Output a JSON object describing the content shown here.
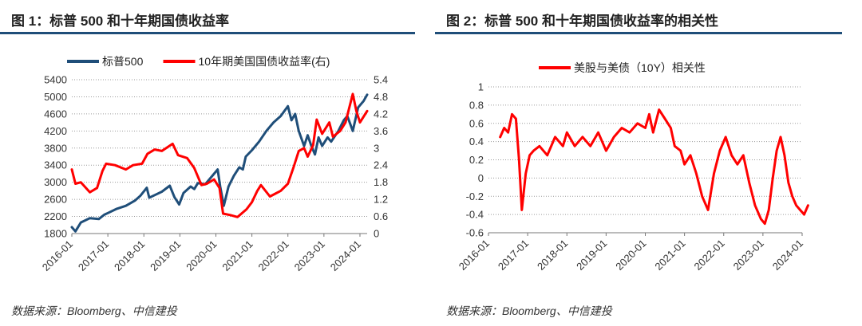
{
  "chart_data": [
    {
      "type": "line",
      "title": "图 1：标普 500 和十年期国债收益率",
      "source": "数据来源：Bloomberg、中信建投",
      "x_tick_labels": [
        "2016-01",
        "2017-01",
        "2018-01",
        "2019-01",
        "2020-01",
        "2021-01",
        "2022-01",
        "2023-01",
        "2024-01"
      ],
      "x_range": [
        2016.0,
        2024.2
      ],
      "y_left": {
        "ticks": [
          "5400",
          "5000",
          "4600",
          "4200",
          "3800",
          "3400",
          "3000",
          "2600",
          "2200",
          "1800"
        ],
        "range": [
          1800,
          5400
        ]
      },
      "y_right": {
        "ticks": [
          "5.4",
          "4.8",
          "4.2",
          "3.6",
          "3",
          "2.4",
          "1.8",
          "1.2",
          "0.6",
          "0"
        ],
        "range": [
          0,
          5.4
        ]
      },
      "grid": "horizontal dotted",
      "legend_position": "top",
      "series": [
        {
          "name": "标普500",
          "axis": "left",
          "color": "#1f4e79",
          "x": [
            2016.0,
            2016.1,
            2016.25,
            2016.5,
            2016.75,
            2016.9,
            2017.0,
            2017.25,
            2017.5,
            2017.75,
            2017.9,
            2018.08,
            2018.15,
            2018.3,
            2018.5,
            2018.72,
            2018.85,
            2018.98,
            2019.1,
            2019.3,
            2019.4,
            2019.5,
            2019.7,
            2019.9,
            2020.05,
            2020.12,
            2020.22,
            2020.35,
            2020.5,
            2020.65,
            2020.75,
            2020.83,
            2021.0,
            2021.2,
            2021.4,
            2021.6,
            2021.8,
            2022.0,
            2022.1,
            2022.2,
            2022.3,
            2022.45,
            2022.55,
            2022.65,
            2022.75,
            2022.85,
            2022.95,
            2023.1,
            2023.2,
            2023.4,
            2023.55,
            2023.65,
            2023.8,
            2023.95,
            2024.1,
            2024.2
          ],
          "values": [
            1950,
            1850,
            2060,
            2160,
            2140,
            2240,
            2280,
            2380,
            2450,
            2570,
            2680,
            2870,
            2640,
            2700,
            2780,
            2920,
            2650,
            2480,
            2750,
            2900,
            2840,
            2980,
            2950,
            3150,
            3300,
            2900,
            2450,
            2900,
            3150,
            3350,
            3300,
            3600,
            3750,
            3950,
            4200,
            4400,
            4550,
            4780,
            4450,
            4600,
            4200,
            3850,
            4100,
            3850,
            3650,
            4050,
            3850,
            4050,
            3950,
            4200,
            4450,
            4550,
            4200,
            4750,
            4900,
            5050
          ]
        },
        {
          "name": "10年期美国国债收益率(右)",
          "axis": "right",
          "color": "#ff0000",
          "x": [
            2016.0,
            2016.1,
            2016.25,
            2016.5,
            2016.7,
            2016.85,
            2016.95,
            2017.2,
            2017.5,
            2017.7,
            2017.95,
            2018.1,
            2018.3,
            2018.5,
            2018.8,
            2018.95,
            2019.2,
            2019.4,
            2019.6,
            2019.75,
            2019.95,
            2020.1,
            2020.2,
            2020.4,
            2020.6,
            2020.85,
            2021.0,
            2021.15,
            2021.25,
            2021.5,
            2021.65,
            2021.8,
            2022.0,
            2022.15,
            2022.3,
            2022.45,
            2022.55,
            2022.7,
            2022.8,
            2022.95,
            2023.15,
            2023.25,
            2023.45,
            2023.6,
            2023.8,
            2023.9,
            2024.0,
            2024.2
          ],
          "values": [
            2.25,
            1.75,
            1.8,
            1.45,
            1.6,
            2.2,
            2.45,
            2.4,
            2.25,
            2.4,
            2.45,
            2.8,
            2.95,
            2.9,
            3.15,
            2.75,
            2.65,
            2.3,
            1.7,
            1.75,
            1.9,
            1.6,
            0.7,
            0.65,
            0.58,
            0.85,
            1.1,
            1.5,
            1.7,
            1.3,
            1.4,
            1.5,
            1.75,
            2.3,
            2.9,
            3.0,
            2.7,
            3.1,
            4.0,
            3.5,
            3.9,
            3.4,
            3.6,
            3.9,
            4.9,
            4.3,
            3.9,
            4.3
          ]
        }
      ]
    },
    {
      "type": "line",
      "title": "图 2：标普 500 和十年期国债收益率的相关性",
      "source": "数据来源：Bloomberg、中信建投",
      "x_tick_labels": [
        "2016-01",
        "2017-01",
        "2018-01",
        "2019-01",
        "2020-01",
        "2021-01",
        "2022-01",
        "2023-01",
        "2024-01"
      ],
      "x_range": [
        2016.0,
        2024.0
      ],
      "y_left": {
        "ticks": [
          "1",
          "0.8",
          "0.6",
          "0.4",
          "0.2",
          "0",
          "-0.2",
          "-0.4",
          "-0.6"
        ],
        "range": [
          -0.6,
          1
        ]
      },
      "grid": "horizontal dotted",
      "legend_position": "top",
      "series": [
        {
          "name": "美股与美债（10Y）相关性",
          "axis": "left",
          "color": "#ff0000",
          "x": [
            2016.3,
            2016.4,
            2016.5,
            2016.6,
            2016.7,
            2016.78,
            2016.85,
            2016.95,
            2017.05,
            2017.15,
            2017.3,
            2017.5,
            2017.7,
            2017.9,
            2018.0,
            2018.2,
            2018.4,
            2018.6,
            2018.8,
            2019.0,
            2019.2,
            2019.4,
            2019.6,
            2019.8,
            2020.0,
            2020.1,
            2020.2,
            2020.35,
            2020.5,
            2020.65,
            2020.75,
            2020.9,
            2021.0,
            2021.15,
            2021.3,
            2021.45,
            2021.6,
            2021.75,
            2021.9,
            2022.05,
            2022.2,
            2022.35,
            2022.5,
            2022.65,
            2022.8,
            2022.95,
            2023.05,
            2023.15,
            2023.25,
            2023.35,
            2023.45,
            2023.55,
            2023.65,
            2023.75,
            2023.85,
            2023.95,
            2024.05,
            2024.15
          ],
          "values": [
            0.45,
            0.55,
            0.5,
            0.7,
            0.65,
            0.2,
            -0.35,
            0.05,
            0.25,
            0.3,
            0.35,
            0.25,
            0.45,
            0.35,
            0.5,
            0.35,
            0.45,
            0.35,
            0.5,
            0.3,
            0.45,
            0.55,
            0.5,
            0.6,
            0.55,
            0.7,
            0.5,
            0.75,
            0.65,
            0.55,
            0.35,
            0.3,
            0.15,
            0.25,
            0.05,
            -0.2,
            -0.35,
            0.05,
            0.3,
            0.45,
            0.25,
            0.15,
            0.25,
            -0.05,
            -0.3,
            -0.45,
            -0.5,
            -0.35,
            0.0,
            0.3,
            0.45,
            0.25,
            -0.05,
            -0.2,
            -0.3,
            -0.35,
            -0.4,
            -0.3
          ]
        }
      ]
    }
  ]
}
